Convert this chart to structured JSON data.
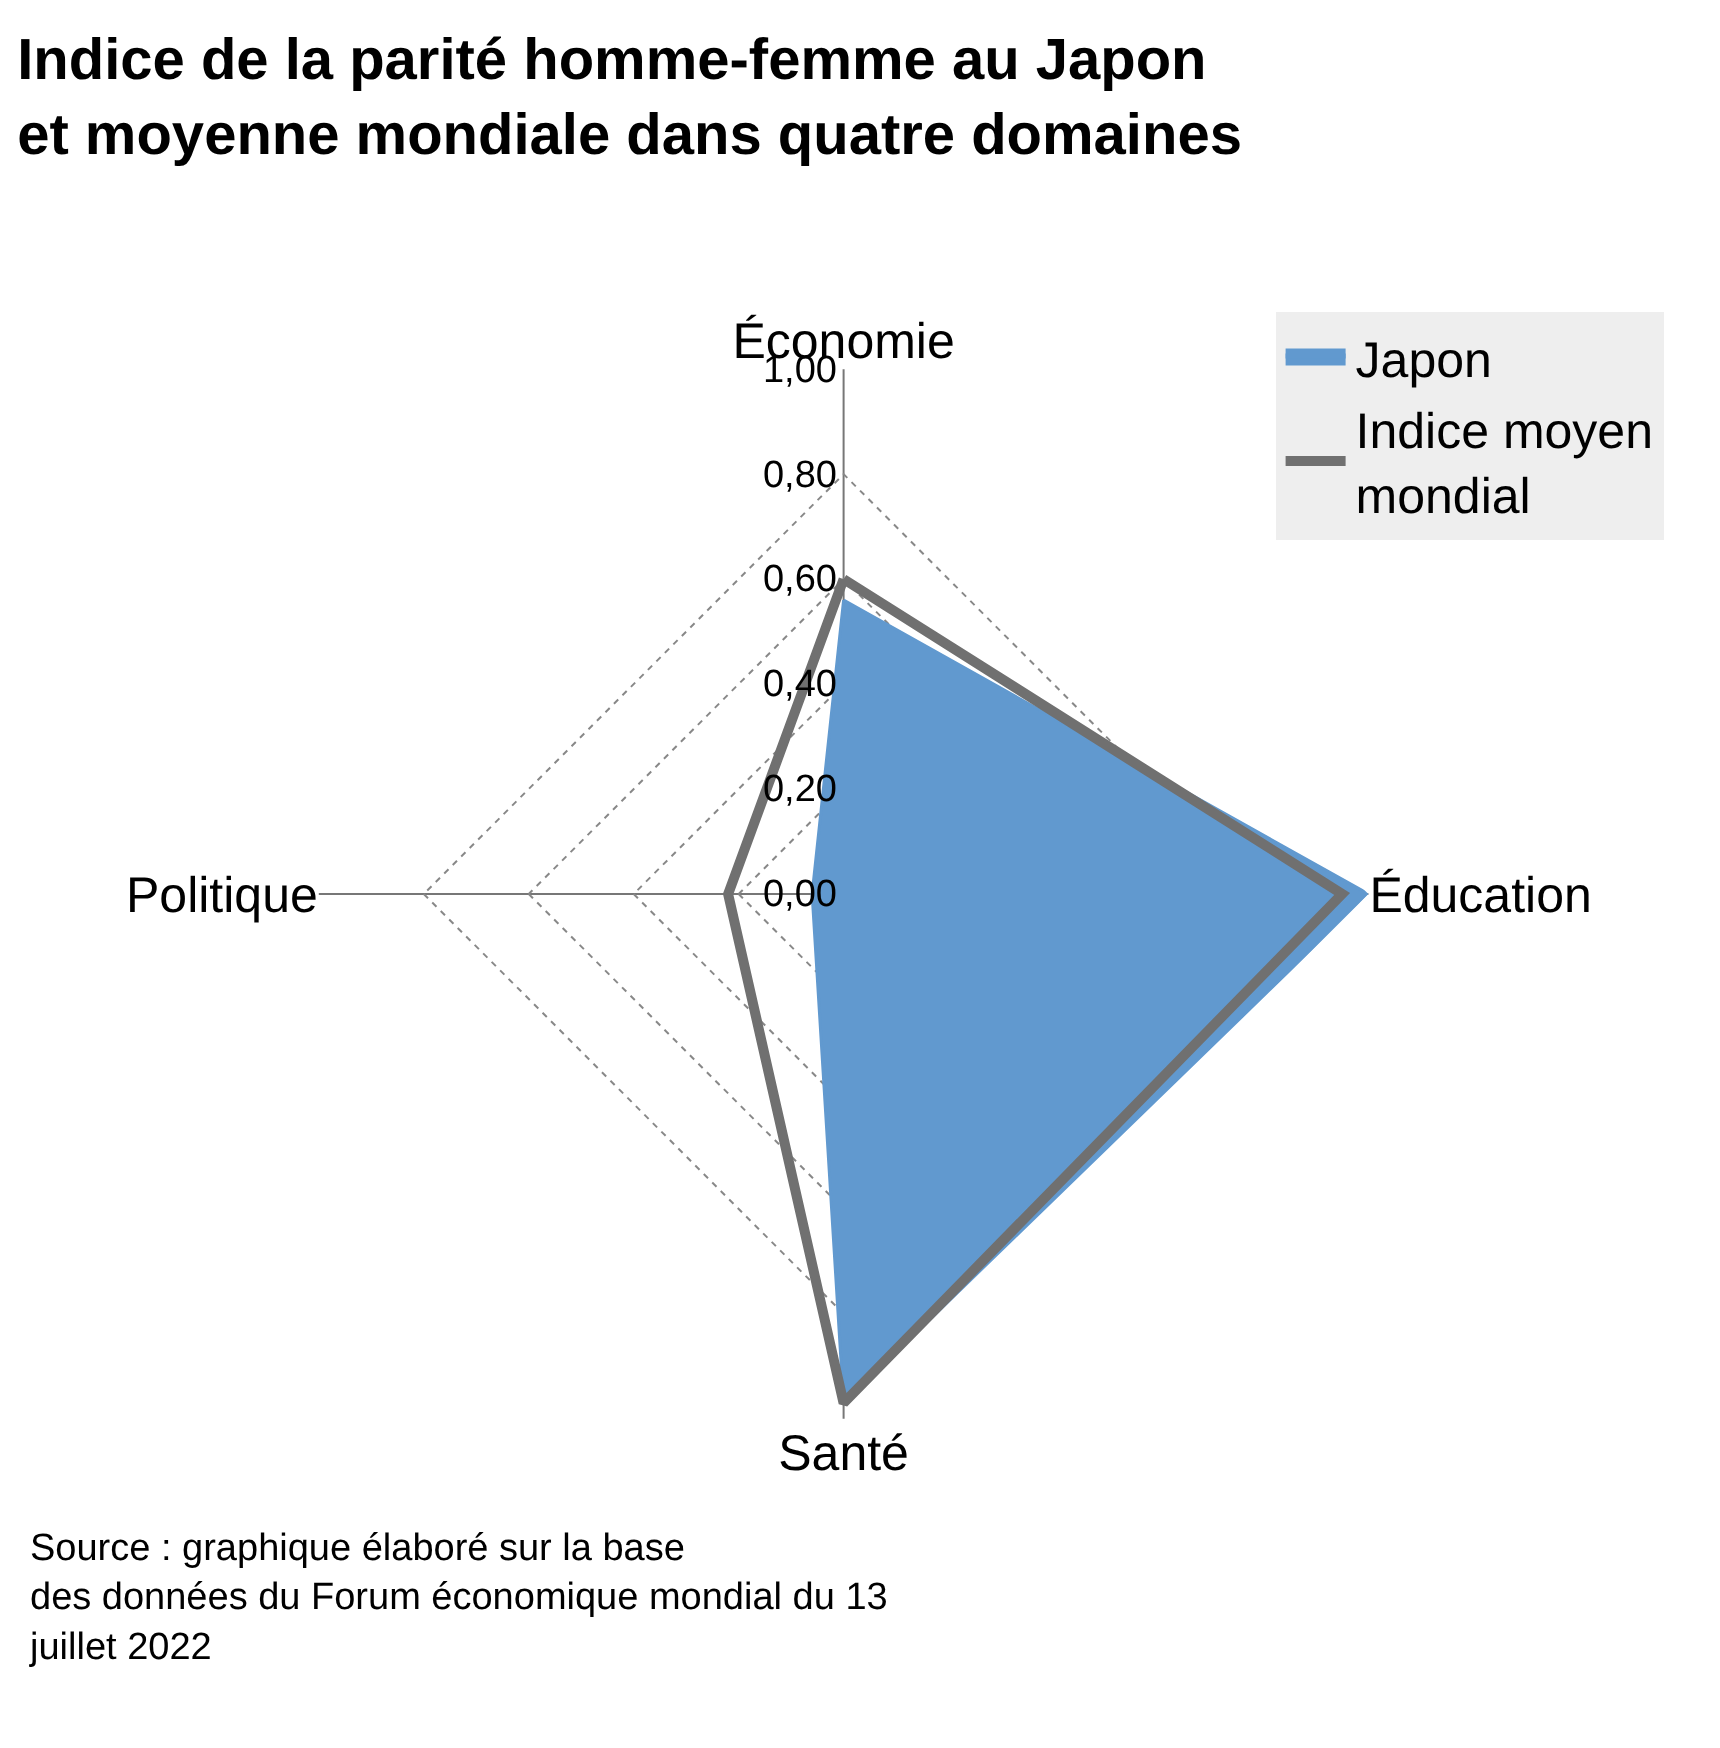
{
  "chart_data": {
    "type": "radar",
    "title": "Indice de la parité homme-femme au Japon\net moyenne mondiale dans quatre domaines",
    "categories": [
      "Économie",
      "Éducation",
      "Santé",
      "Politique"
    ],
    "series": [
      {
        "name": "Japon",
        "type": "area",
        "color": "#6199cf",
        "values": [
          0.56,
          1.0,
          0.97,
          0.06
        ]
      },
      {
        "name": "Indice moyen\nmondial",
        "type": "radar",
        "color": "#707070",
        "values": [
          0.6,
          0.95,
          0.97,
          0.22
        ]
      }
    ],
    "ylim": [
      0,
      1
    ],
    "yticks": [
      {
        "value": 0,
        "label": "0,00"
      },
      {
        "value": 0.2,
        "label": "0,20"
      },
      {
        "value": 0.4,
        "label": "0,40"
      },
      {
        "value": 0.6,
        "label": "0,60"
      },
      {
        "value": 0.8,
        "label": "0,80"
      },
      {
        "value": 1,
        "label": "1,00"
      }
    ],
    "grid": true,
    "legend": "top right",
    "marker": "none",
    "annotations": [
      "Source : graphique élaboré sur la base\ndes données du Forum économique mondial du 13\njuillet 2022"
    ]
  }
}
